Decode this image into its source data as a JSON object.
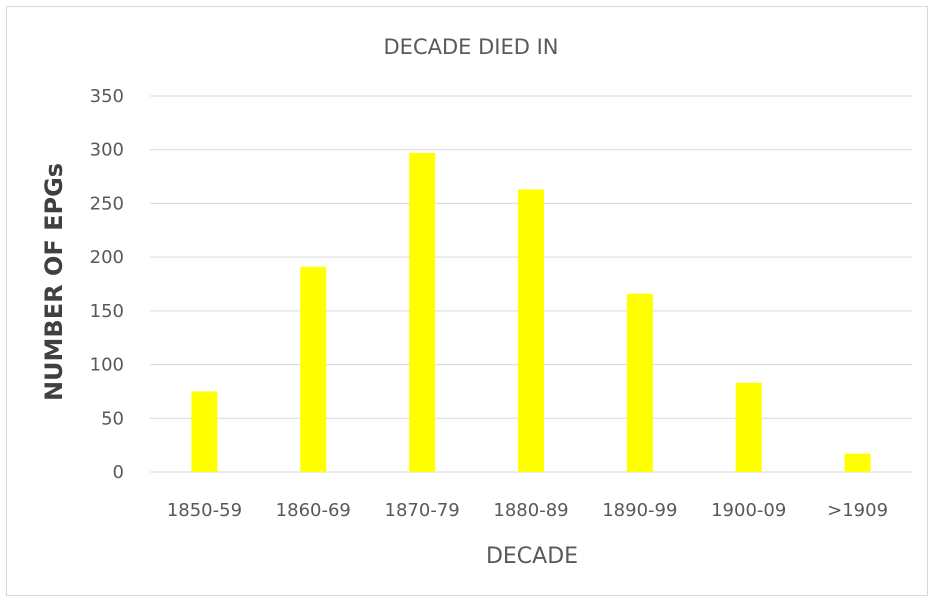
{
  "chart_data": {
    "type": "bar",
    "title": "DECADE DIED IN",
    "xlabel": "DECADE",
    "ylabel": "NUMBER OF EPGs",
    "categories": [
      "1850-59",
      "1860-69",
      "1870-79",
      "1880-89",
      "1890-99",
      "1900-09",
      ">1909"
    ],
    "values": [
      75,
      191,
      297,
      263,
      166,
      83,
      17
    ],
    "ylim": [
      0,
      350
    ],
    "yticks": [
      0,
      50,
      100,
      150,
      200,
      250,
      300,
      350
    ],
    "bar_color": "#ffff00",
    "grid": true,
    "legend": "none"
  }
}
